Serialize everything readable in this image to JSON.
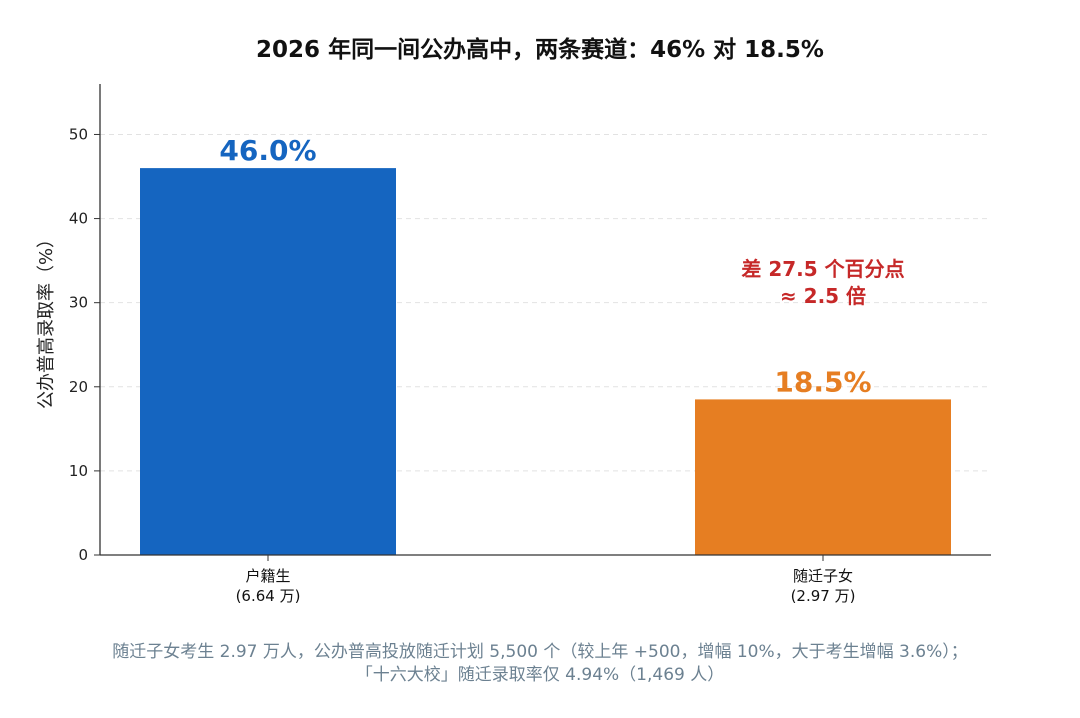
{
  "chart_data": {
    "type": "bar",
    "title": "2026 年同一间公办高中，两条赛道：46% 对 18.5%",
    "ylabel": "公办普高录取率（%）",
    "xlabel": "",
    "ylim": [
      0,
      56
    ],
    "yticks": [
      0,
      10,
      20,
      30,
      40,
      50
    ],
    "grid": true,
    "categories": [
      {
        "label": "户籍生",
        "sublabel": "(6.64 万)"
      },
      {
        "label": "随迁子女",
        "sublabel": "(2.97 万)"
      }
    ],
    "values": [
      46.0,
      18.5
    ],
    "value_labels": [
      "46.0%",
      "18.5%"
    ],
    "colors": [
      "#1565c0",
      "#e67e22"
    ],
    "annotation": {
      "lines": [
        "差 27.5 个百分点",
        "≈ 2.5 倍"
      ],
      "color": "#c62828"
    }
  },
  "caption": {
    "line1": "随迁子女考生 2.97 万人，公办普高投放随迁计划 5,500 个（较上年 +500，增幅 10%，大于考生增幅 3.6%）；",
    "line2": "「十六大校」随迁录取率仅 4.94%（1,469 人）"
  }
}
